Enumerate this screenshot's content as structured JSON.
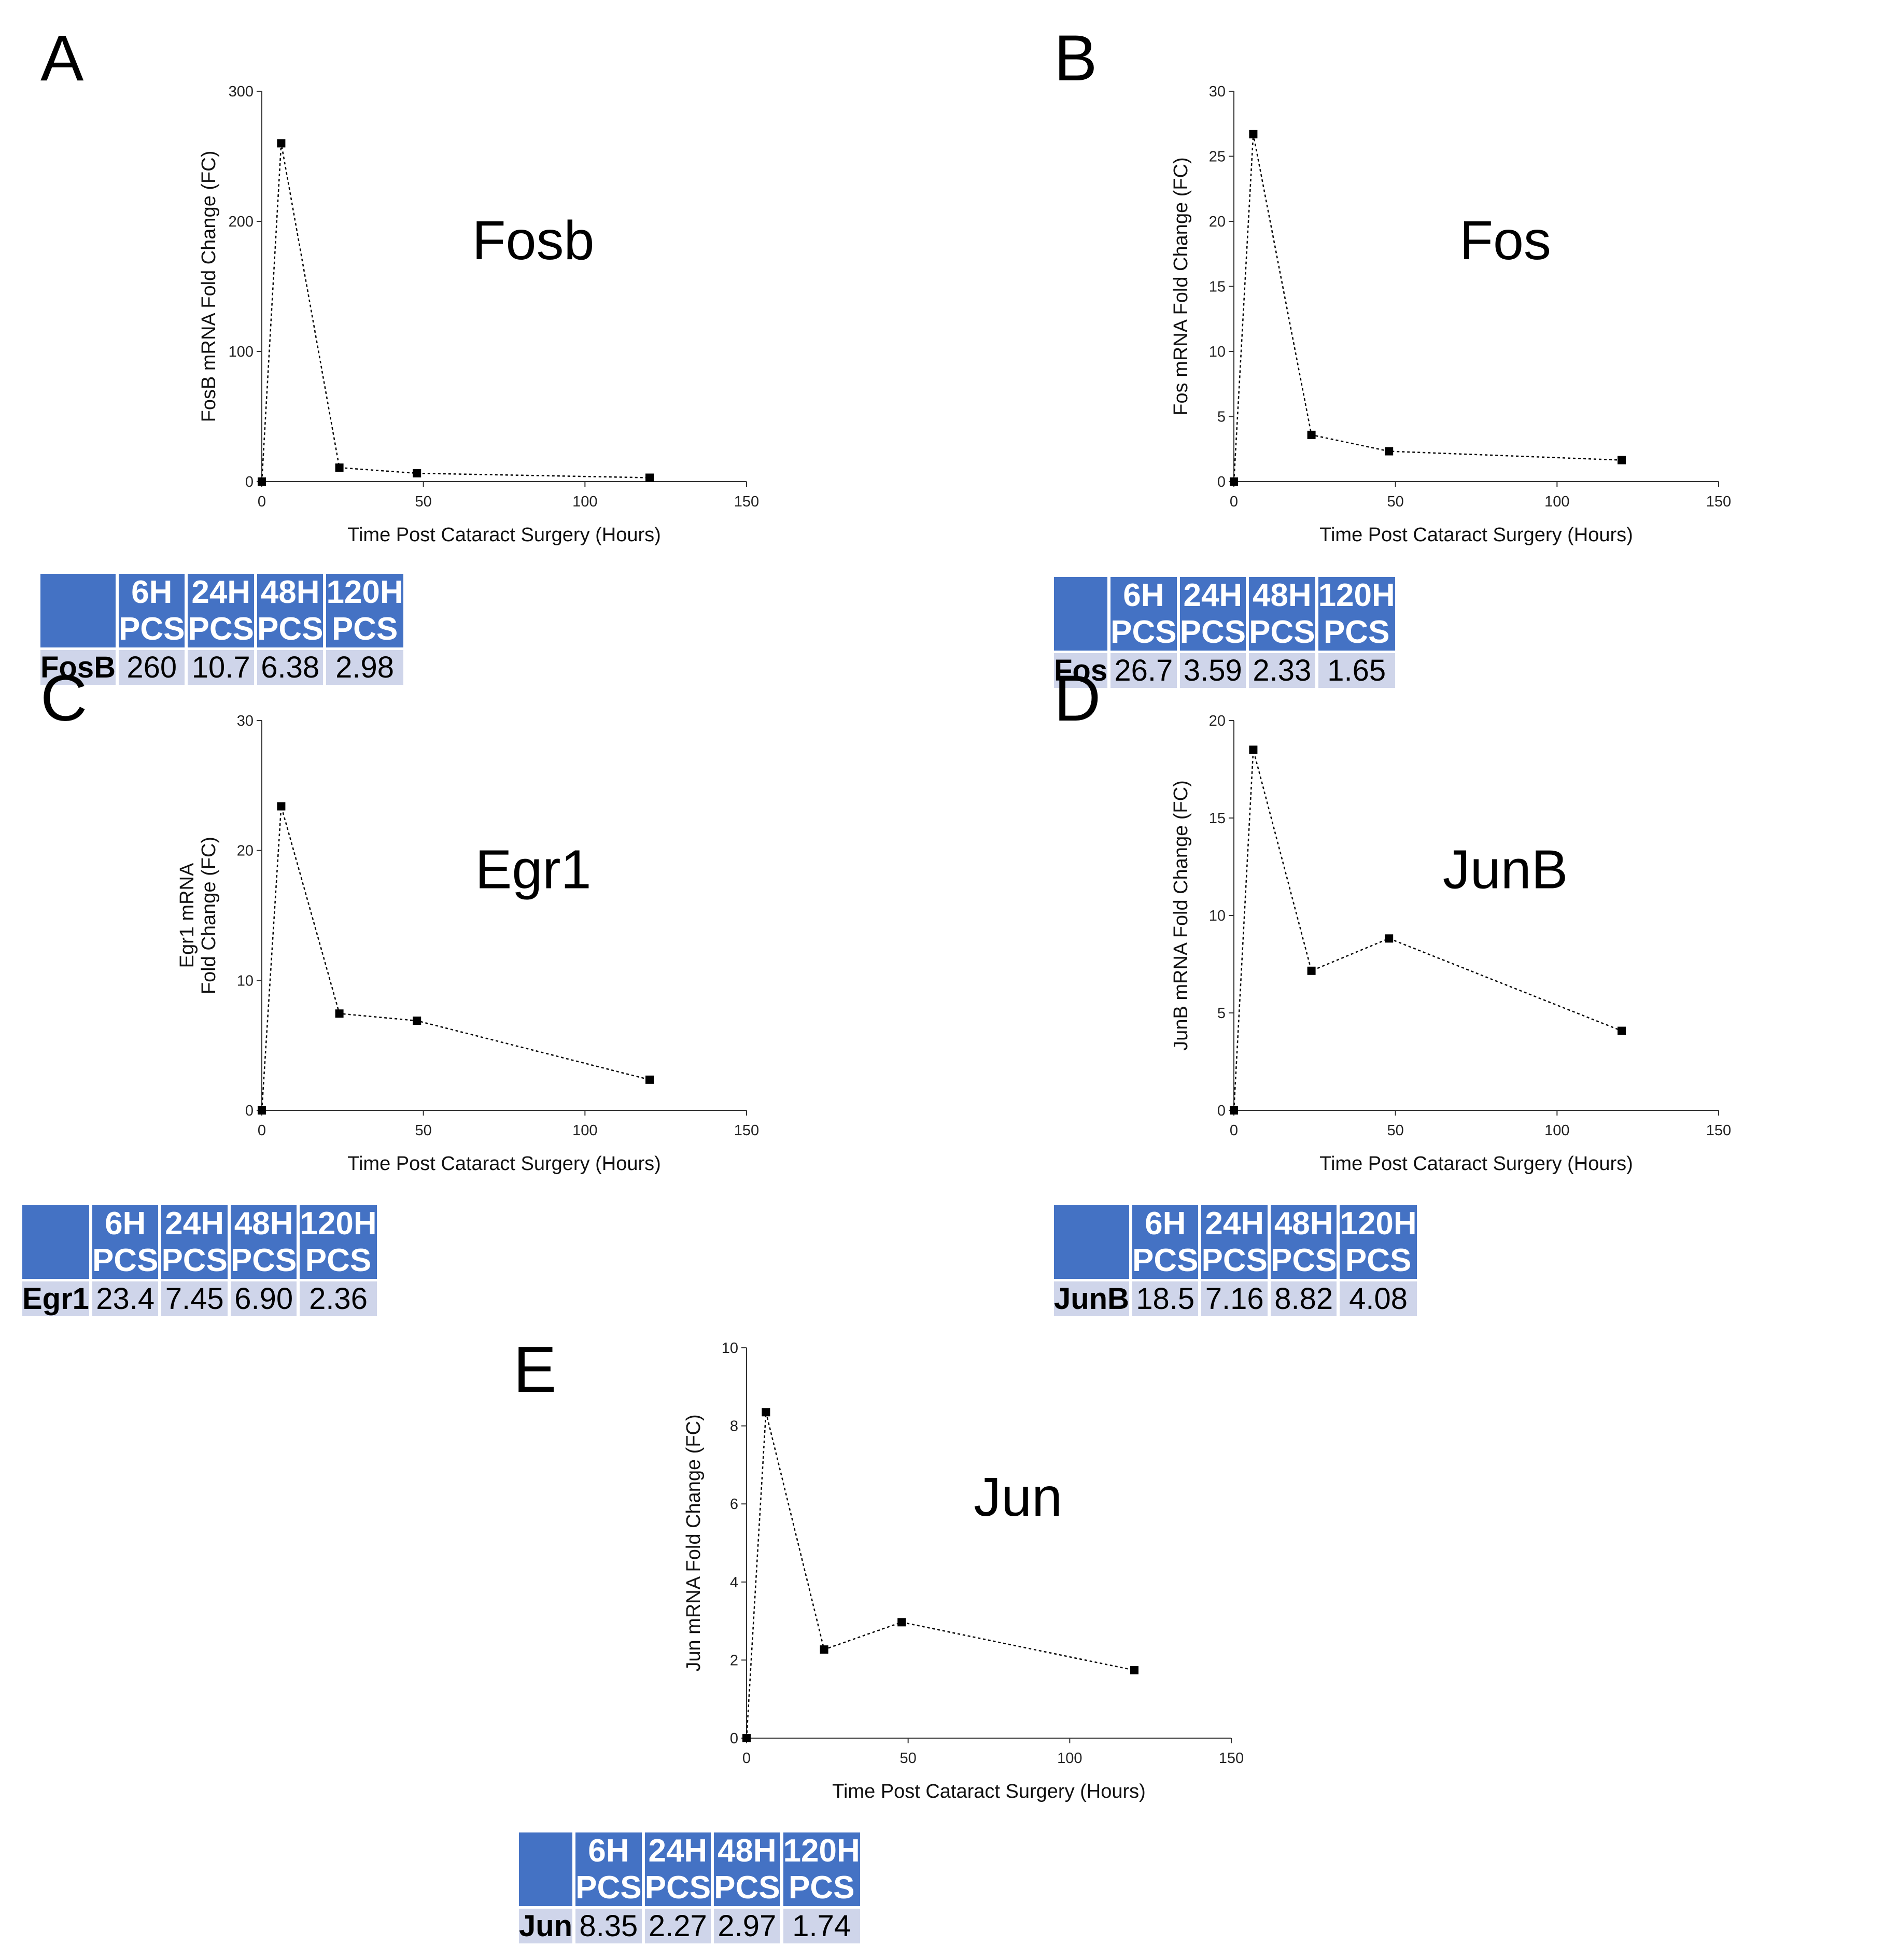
{
  "colors": {
    "header_bg": "#4472c4",
    "row_bg": "#cfd5ea",
    "marker": "#000000"
  },
  "panels": [
    {
      "letter": "A",
      "chart_data": {
        "type": "line",
        "title": "Fosb",
        "xlabel": "Time Post Cataract Surgery (Hours)",
        "ylabel": "FosB mRNA Fold Change (FC)",
        "xlim": [
          0,
          150
        ],
        "ylim": [
          0,
          300
        ],
        "xticks": [
          0,
          50,
          100,
          150
        ],
        "yticks": [
          0,
          100,
          200,
          300
        ],
        "x": [
          0,
          6,
          24,
          48,
          120
        ],
        "y": [
          0,
          260,
          10.7,
          6.38,
          2.98
        ]
      },
      "table": {
        "gene": "FosB",
        "headers": [
          "6H PCS",
          "24H PCS",
          "48H PCS",
          "120H PCS"
        ],
        "values": [
          "260",
          "10.7",
          "6.38",
          "2.98"
        ]
      }
    },
    {
      "letter": "B",
      "chart_data": {
        "type": "line",
        "title": "Fos",
        "xlabel": "Time Post Cataract Surgery (Hours)",
        "ylabel": "Fos mRNA Fold Change (FC)",
        "xlim": [
          0,
          150
        ],
        "ylim": [
          0,
          30
        ],
        "xticks": [
          0,
          50,
          100,
          150
        ],
        "yticks": [
          0,
          5,
          10,
          15,
          20,
          25,
          30
        ],
        "x": [
          0,
          6,
          24,
          48,
          120
        ],
        "y": [
          0,
          26.7,
          3.59,
          2.33,
          1.65
        ]
      },
      "table": {
        "gene": "Fos",
        "headers": [
          "6H PCS",
          "24H PCS",
          "48H PCS",
          "120H PCS"
        ],
        "values": [
          "26.7",
          "3.59",
          "2.33",
          "1.65"
        ]
      }
    },
    {
      "letter": "C",
      "chart_data": {
        "type": "line",
        "title": "Egr1",
        "xlabel": "Time Post Cataract Surgery (Hours)",
        "ylabel": [
          "Egr1 mRNA",
          "Fold Change (FC)"
        ],
        "xlim": [
          0,
          150
        ],
        "ylim": [
          0,
          30
        ],
        "xticks": [
          0,
          50,
          100,
          150
        ],
        "yticks": [
          0,
          10,
          20,
          30
        ],
        "x": [
          0,
          6,
          24,
          48,
          120
        ],
        "y": [
          0,
          23.4,
          7.45,
          6.9,
          2.36
        ]
      },
      "table": {
        "gene": "Egr1",
        "headers": [
          "6H PCS",
          "24H PCS",
          "48H PCS",
          "120H PCS"
        ],
        "values": [
          "23.4",
          "7.45",
          "6.90",
          "2.36"
        ]
      }
    },
    {
      "letter": "D",
      "chart_data": {
        "type": "line",
        "title": "JunB",
        "xlabel": "Time Post Cataract Surgery (Hours)",
        "ylabel": "JunB mRNA Fold Change (FC)",
        "xlim": [
          0,
          150
        ],
        "ylim": [
          0,
          20
        ],
        "xticks": [
          0,
          50,
          100,
          150
        ],
        "yticks": [
          0,
          5,
          10,
          15,
          20
        ],
        "x": [
          0,
          6,
          24,
          48,
          120
        ],
        "y": [
          0,
          18.5,
          7.16,
          8.82,
          4.08
        ]
      },
      "table": {
        "gene": "JunB",
        "headers": [
          "6H PCS",
          "24H PCS",
          "48H PCS",
          "120H PCS"
        ],
        "values": [
          "18.5",
          "7.16",
          "8.82",
          "4.08"
        ]
      }
    },
    {
      "letter": "E",
      "chart_data": {
        "type": "line",
        "title": "Jun",
        "xlabel": "Time Post Cataract Surgery (Hours)",
        "ylabel": "Jun mRNA Fold Change (FC)",
        "xlim": [
          0,
          150
        ],
        "ylim": [
          0,
          10
        ],
        "xticks": [
          0,
          50,
          100,
          150
        ],
        "yticks": [
          0,
          2,
          4,
          6,
          8,
          10
        ],
        "x": [
          0,
          6,
          24,
          48,
          120
        ],
        "y": [
          0,
          8.35,
          2.27,
          2.97,
          1.74
        ]
      },
      "table": {
        "gene": "Jun",
        "headers": [
          "6H PCS",
          "24H PCS",
          "48H PCS",
          "120H PCS"
        ],
        "values": [
          "8.35",
          "2.27",
          "2.97",
          "1.74"
        ]
      }
    }
  ]
}
